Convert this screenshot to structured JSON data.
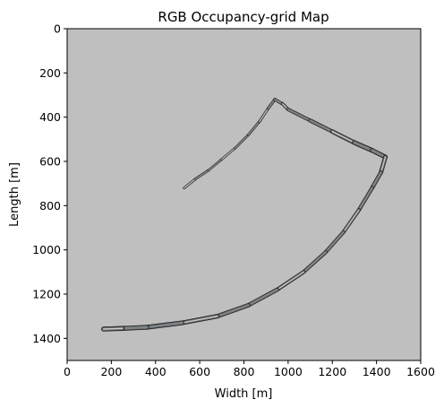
{
  "chart_data": {
    "type": "heatmap",
    "title": "RGB Occupancy-grid Map",
    "xlabel": "Width [m]",
    "ylabel": "Length [m]",
    "xlim": [
      0,
      1600
    ],
    "ylim": [
      1500,
      0
    ],
    "x_ticks": [
      0,
      200,
      400,
      600,
      800,
      1000,
      1200,
      1400,
      1600
    ],
    "y_ticks": [
      0,
      200,
      400,
      600,
      800,
      1000,
      1200,
      1400
    ],
    "y_axis_inverted": true,
    "grid": false,
    "legend": "none",
    "background_color": "#bfbfbf",
    "track_colors": [
      "#1a1a1a",
      "#5a5a5a",
      "#9a9a9a",
      "#e6e6e6",
      "#6a7a86"
    ],
    "track": [
      [
        530,
        720
      ],
      [
        580,
        680
      ],
      [
        640,
        640
      ],
      [
        700,
        590
      ],
      [
        760,
        540
      ],
      [
        820,
        480
      ],
      [
        870,
        420
      ],
      [
        910,
        360
      ],
      [
        940,
        320
      ],
      [
        975,
        340
      ],
      [
        1000,
        365
      ],
      [
        1100,
        415
      ],
      [
        1200,
        465
      ],
      [
        1300,
        515
      ],
      [
        1380,
        550
      ],
      [
        1440,
        580
      ],
      [
        1420,
        650
      ],
      [
        1380,
        720
      ],
      [
        1320,
        820
      ],
      [
        1250,
        920
      ],
      [
        1170,
        1010
      ],
      [
        1070,
        1100
      ],
      [
        950,
        1180
      ],
      [
        820,
        1250
      ],
      [
        680,
        1300
      ],
      [
        520,
        1330
      ],
      [
        360,
        1350
      ],
      [
        250,
        1355
      ],
      [
        165,
        1358
      ]
    ],
    "track_widths": [
      12,
      12,
      11,
      11,
      11,
      12,
      12,
      13,
      14,
      15,
      15,
      17,
      19,
      21,
      22,
      20,
      19,
      18,
      17,
      17,
      17,
      17,
      18,
      19,
      20,
      21,
      21,
      22,
      22
    ]
  }
}
